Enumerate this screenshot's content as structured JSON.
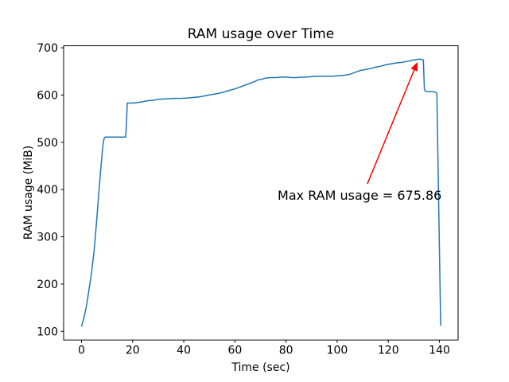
{
  "chart_data": {
    "type": "line",
    "title": "RAM usage over Time",
    "xlabel": "Time (sec)",
    "ylabel": "RAM usage (MiB)",
    "xlim": [
      -7.0,
      147.3
    ],
    "ylim": [
      81.6,
      704.3
    ],
    "xticks": [
      0,
      20,
      40,
      60,
      80,
      100,
      120,
      140
    ],
    "yticks": [
      100,
      200,
      300,
      400,
      500,
      600,
      700
    ],
    "grid": false,
    "legend": null,
    "line_color": "#1f77b4",
    "background_color": "#ffffff",
    "spine_color": "#000000",
    "series": [
      {
        "name": "RAM usage",
        "points": [
          [
            0,
            110
          ],
          [
            1,
            130
          ],
          [
            2,
            155
          ],
          [
            3,
            190
          ],
          [
            4,
            228
          ],
          [
            5,
            275
          ],
          [
            6,
            340
          ],
          [
            6.5,
            375
          ],
          [
            7.5,
            442
          ],
          [
            8.3,
            490
          ],
          [
            8.8,
            508
          ],
          [
            9.2,
            511
          ],
          [
            11,
            511
          ],
          [
            13,
            511
          ],
          [
            15,
            511
          ],
          [
            17.3,
            511
          ],
          [
            17.6,
            545
          ],
          [
            17.9,
            583
          ],
          [
            19,
            583
          ],
          [
            20,
            583
          ],
          [
            22,
            584
          ],
          [
            24,
            586
          ],
          [
            26,
            588
          ],
          [
            28,
            589
          ],
          [
            30,
            591
          ],
          [
            33,
            592
          ],
          [
            36,
            593
          ],
          [
            39,
            593
          ],
          [
            42,
            594
          ],
          [
            44,
            595
          ],
          [
            46,
            596
          ],
          [
            48,
            598
          ],
          [
            50,
            600
          ],
          [
            52,
            602
          ],
          [
            54,
            604
          ],
          [
            56,
            607
          ],
          [
            58,
            610
          ],
          [
            60,
            613
          ],
          [
            62,
            617
          ],
          [
            64,
            621
          ],
          [
            66,
            625
          ],
          [
            68,
            629
          ],
          [
            69,
            632
          ],
          [
            70,
            633
          ],
          [
            71,
            634
          ],
          [
            72,
            636
          ],
          [
            74,
            637
          ],
          [
            76,
            637
          ],
          [
            78,
            638
          ],
          [
            80,
            638
          ],
          [
            82,
            637
          ],
          [
            84,
            637
          ],
          [
            86,
            638
          ],
          [
            88,
            638
          ],
          [
            90,
            639
          ],
          [
            92,
            640
          ],
          [
            95,
            640
          ],
          [
            98,
            640
          ],
          [
            101,
            641
          ],
          [
            103,
            642
          ],
          [
            105,
            644
          ],
          [
            107,
            648
          ],
          [
            109,
            652
          ],
          [
            111,
            654
          ],
          [
            113,
            656
          ],
          [
            115,
            659
          ],
          [
            117,
            661
          ],
          [
            119,
            664
          ],
          [
            121,
            666
          ],
          [
            123,
            668
          ],
          [
            125,
            669
          ],
          [
            127,
            671
          ],
          [
            129,
            673
          ],
          [
            130,
            674.5
          ],
          [
            131,
            675.4
          ],
          [
            132,
            675.86
          ],
          [
            133,
            675.6
          ],
          [
            133.7,
            674.5
          ],
          [
            134.1,
            612
          ],
          [
            134.5,
            608
          ],
          [
            136,
            607
          ],
          [
            137.5,
            607
          ],
          [
            138.5,
            606
          ],
          [
            139,
            604
          ],
          [
            140.5,
            112
          ]
        ]
      }
    ],
    "annotation": {
      "text": "Max RAM usage = 675.86",
      "color": "#ff0000",
      "max_value": 675.86,
      "points_to_xy": [
        132,
        675.86
      ],
      "arrow_tail_xy": [
        111.8,
        412
      ],
      "arrow_tip_xy": [
        131.4,
        670
      ],
      "text_center_xy": [
        108.8,
        388
      ]
    }
  }
}
